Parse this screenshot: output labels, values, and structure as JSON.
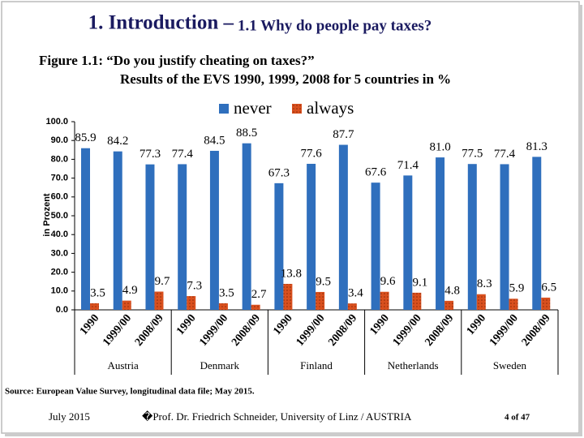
{
  "slide": {
    "title_main": "1. Introduction –",
    "title_sub": "1.1 Why do people pay taxes?",
    "caption_line1": "Figure 1.1: “Do you justify cheating on taxes?”",
    "caption_line2": "Results of the EVS 1990, 1999, 2008 for 5 countries in %",
    "source": "Source: European Value Survey, longitudinal data file; May 2015.",
    "date": "July 2015",
    "author": "�Prof. Dr. Friedrich Schneider, University of Linz / AUSTRIA",
    "page": "4 of 47"
  },
  "chart_data": {
    "type": "bar",
    "y_label": "in Prozent",
    "categories": [
      "1990",
      "1999/00",
      "2008/09",
      "1990",
      "1999/00",
      "2008/09",
      "1990",
      "1999/00",
      "2008/09",
      "1990",
      "1999/00",
      "2008/09",
      "1990",
      "1999/00",
      "2008/09"
    ],
    "groups": [
      "Austria",
      "Denmark",
      "Finland",
      "Netherlands",
      "Sweden"
    ],
    "series": [
      {
        "name": "never",
        "color": "#2f6fbd",
        "values": [
          85.9,
          84.2,
          77.3,
          77.4,
          84.5,
          88.5,
          67.3,
          77.6,
          87.7,
          67.6,
          71.4,
          81.0,
          77.5,
          77.4,
          81.3
        ],
        "value_labels": [
          "85.9",
          "84.2",
          "77.3",
          "77.4",
          "84.5",
          "88.5",
          "67.3",
          "77.6",
          "87.7",
          "67.6",
          "71.4",
          "81.0",
          "77.5",
          "77.4",
          "81.3"
        ]
      },
      {
        "name": "always",
        "color": "#d9501e",
        "values": [
          3.5,
          4.9,
          9.7,
          7.3,
          3.5,
          2.7,
          13.8,
          9.5,
          3.4,
          9.6,
          9.1,
          4.8,
          8.3,
          5.9,
          6.5
        ]
      }
    ],
    "ylim": [
      0,
      100
    ],
    "yticks": [
      {
        "value": 0,
        "label": "0.0"
      },
      {
        "value": 10,
        "label": "10.0"
      },
      {
        "value": 20,
        "label": "20.0"
      },
      {
        "value": 30,
        "label": "30.0"
      },
      {
        "value": 40,
        "label": "40.0"
      },
      {
        "value": 50,
        "label": "50.0"
      },
      {
        "value": 60,
        "label": "60.0"
      },
      {
        "value": 70,
        "label": "70.0"
      },
      {
        "value": 80,
        "label": "80.0"
      },
      {
        "value": 90,
        "label": "90.0"
      },
      {
        "value": 100,
        "label": "100.0"
      }
    ],
    "legend": "top"
  }
}
